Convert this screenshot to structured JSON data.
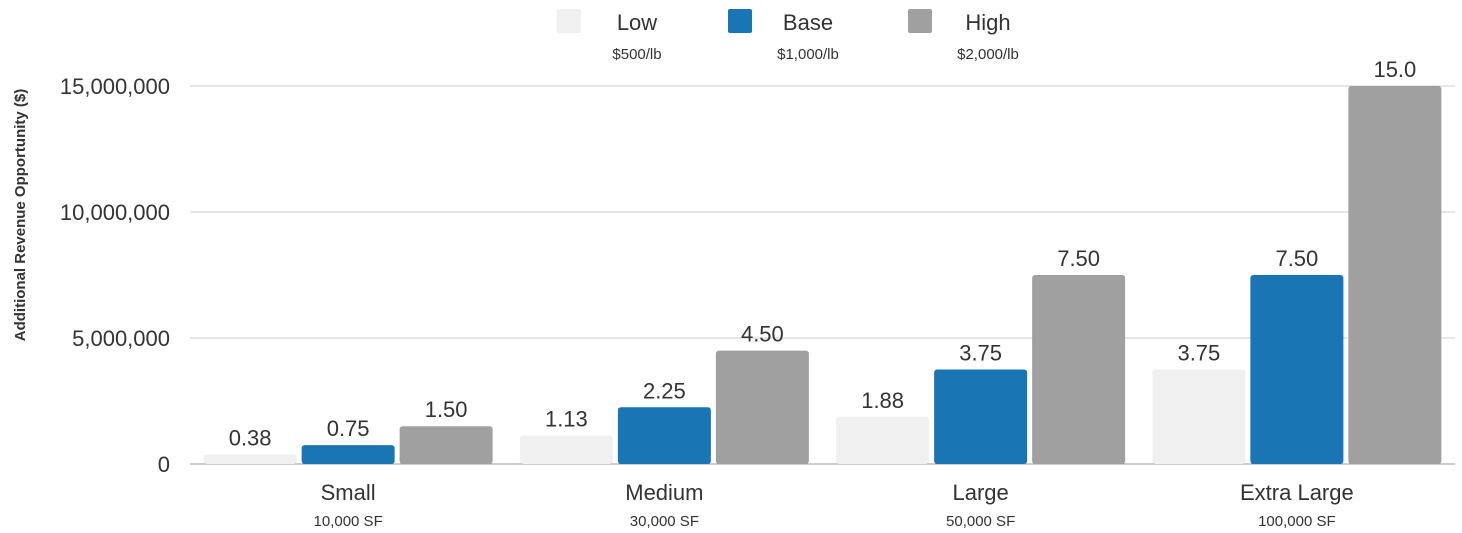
{
  "chart_data": {
    "type": "bar",
    "ylabel": "Additional Revenue Opportunity ($)",
    "xlabel": "",
    "title": "",
    "ylim": [
      0,
      15000000
    ],
    "yticks": [
      0,
      5000000,
      10000000,
      15000000
    ],
    "ytick_labels": [
      "0",
      "5,000,000",
      "10,000,000",
      "15,000,000"
    ],
    "grid": true,
    "legend_position": "top-center",
    "categories": [
      "Small",
      "Medium",
      "Large",
      "Extra Large"
    ],
    "category_sublabels": [
      "10,000 SF",
      "30,000 SF",
      "50,000 SF",
      "100,000 SF"
    ],
    "series": [
      {
        "name": "Low",
        "sublabel": "$500/lb",
        "color": "#f0f0f0",
        "values": [
          375000,
          1125000,
          1875000,
          3750000
        ],
        "labels": [
          "0.38",
          "1.13",
          "1.88",
          "3.75"
        ]
      },
      {
        "name": "Base",
        "sublabel": "$1,000/lb",
        "color": "#1a75b4",
        "values": [
          750000,
          2250000,
          3750000,
          7500000
        ],
        "labels": [
          "0.75",
          "2.25",
          "3.75",
          "7.50"
        ]
      },
      {
        "name": "High",
        "sublabel": "$2,000/lb",
        "color": "#a0a0a0",
        "values": [
          1500000,
          4500000,
          7500000,
          15000000
        ],
        "labels": [
          "1.50",
          "4.50",
          "7.50",
          "15.0"
        ]
      }
    ]
  }
}
